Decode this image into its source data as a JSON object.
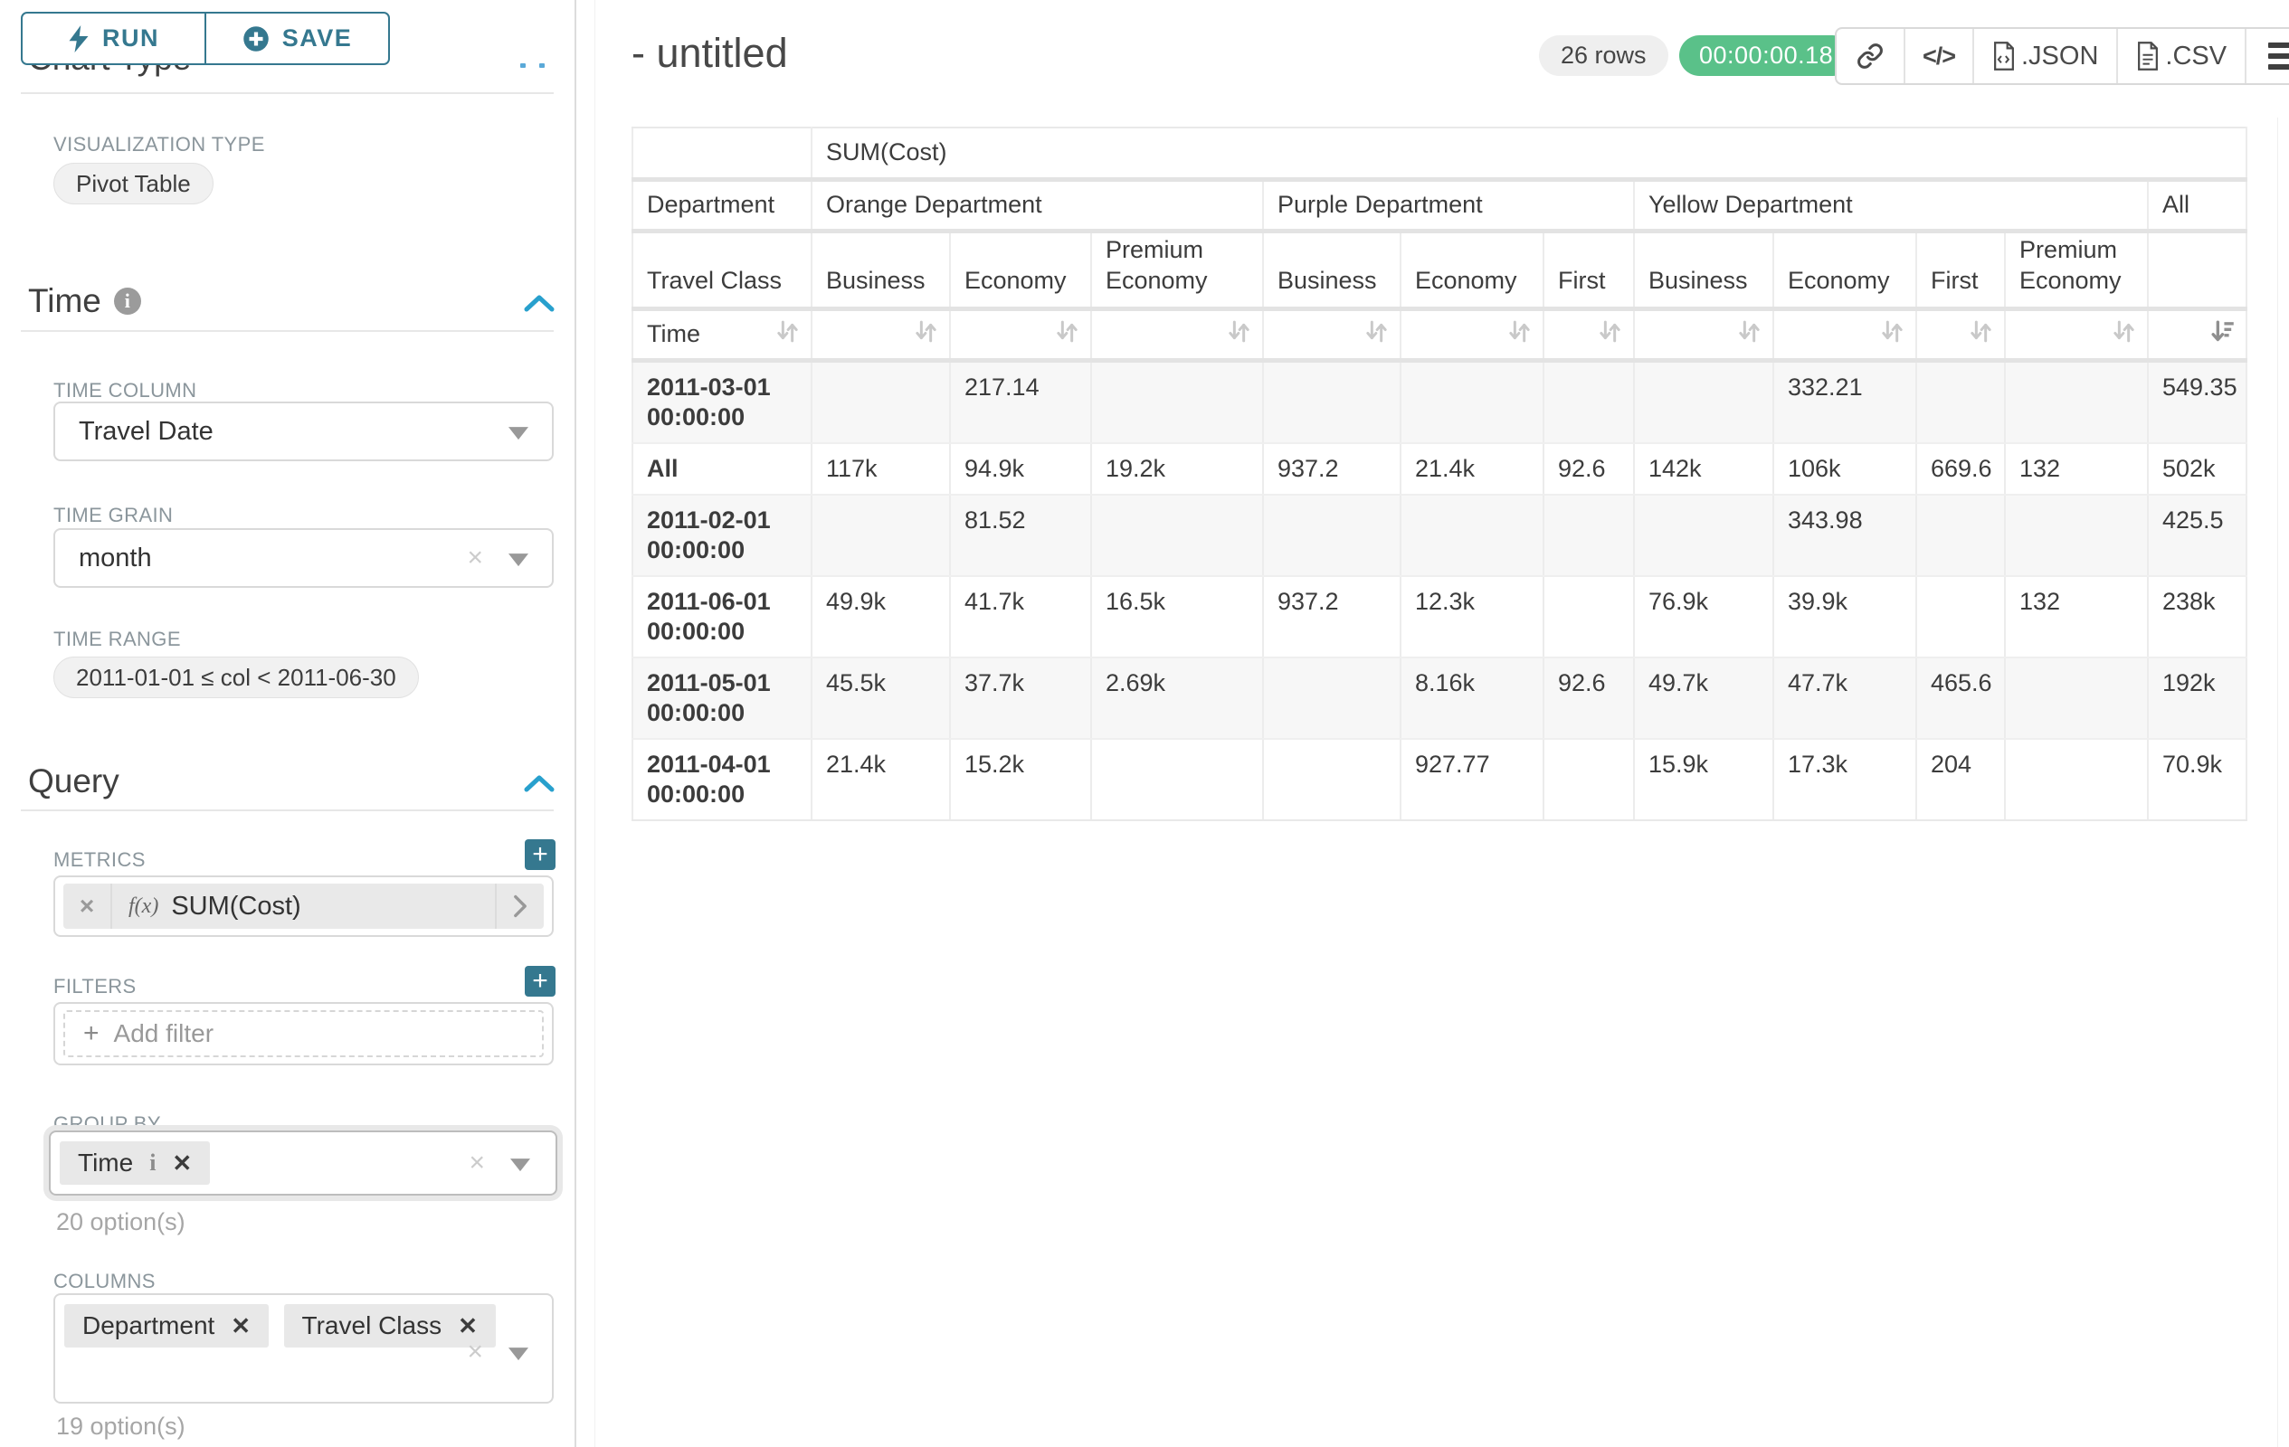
{
  "toolbar": {
    "run_label": "RUN",
    "save_label": "SAVE"
  },
  "sidebar": {
    "section_chart_type": "Chart Type",
    "viz_type_label": "VISUALIZATION TYPE",
    "viz_type_value": "Pivot Table",
    "time_section_label": "Time",
    "time_column_label": "TIME COLUMN",
    "time_column_value": "Travel Date",
    "time_grain_label": "TIME GRAIN",
    "time_grain_value": "month",
    "time_range_label": "TIME RANGE",
    "time_range_value": "2011-01-01 ≤ col < 2011-06-30",
    "query_section_label": "Query",
    "metrics_label": "METRICS",
    "metric_fx": "f(x)",
    "metric_value": "SUM(Cost)",
    "filters_label": "FILTERS",
    "add_filter_label": "Add filter",
    "group_by_label": "GROUP BY",
    "group_by_chips": [
      "Time"
    ],
    "group_by_options_hint": "20 option(s)",
    "columns_label": "COLUMNS",
    "columns_chips": [
      "Department",
      "Travel Class"
    ],
    "columns_options_hint": "19 option(s)"
  },
  "header": {
    "title": "- untitled",
    "row_count": "26 rows",
    "timer": "00:00:00.18",
    "export_json_label": ".JSON",
    "export_csv_label": ".CSV"
  },
  "icons": {
    "run": "lightning-bolt",
    "save": "plus-circle",
    "info": "info-circle",
    "collapse": "chevron-up",
    "select": "caret-down",
    "share": "link-chain",
    "embed": "code-brackets",
    "export": "file-document",
    "more": "hamburger-menu",
    "sort_inactive": "sort-arrows-up-down",
    "sort_active": "sort-amount-desc"
  },
  "colors": {
    "accent_teal": "#35788f",
    "collapse_blue": "#28a0cd",
    "success_green": "#5ac189",
    "label_gray": "#8b969c",
    "grid_gray": "#e3e3e3",
    "stripe_gray": "#f7f7f7"
  },
  "chart_data": {
    "type": "table",
    "title": "SUM(Cost)",
    "row_dimension": "Time",
    "column_dimensions": [
      "Department",
      "Travel Class"
    ],
    "corner": {
      "dim1": "Department",
      "dim2": "Travel Class",
      "row_dim": "Time"
    },
    "column_groups": [
      {
        "label": "Orange Department",
        "children": [
          "Business",
          "Economy",
          "Premium Economy"
        ]
      },
      {
        "label": "Purple Department",
        "children": [
          "Business",
          "Economy",
          "First"
        ]
      },
      {
        "label": "Yellow Department",
        "children": [
          "Business",
          "Economy",
          "First",
          "Premium Economy"
        ]
      },
      {
        "label": "All",
        "children": [
          ""
        ]
      }
    ],
    "sort": {
      "active_column": "All",
      "direction": "desc"
    },
    "rows": [
      {
        "label": "2011-03-01 00:00:00",
        "values": [
          "",
          "217.14",
          "",
          "",
          "",
          "",
          "",
          "332.21",
          "",
          "",
          "549.35"
        ]
      },
      {
        "label": "All",
        "values": [
          "117k",
          "94.9k",
          "19.2k",
          "937.2",
          "21.4k",
          "92.6",
          "142k",
          "106k",
          "669.6",
          "132",
          "502k"
        ]
      },
      {
        "label": "2011-02-01 00:00:00",
        "values": [
          "",
          "81.52",
          "",
          "",
          "",
          "",
          "",
          "343.98",
          "",
          "",
          "425.5"
        ]
      },
      {
        "label": "2011-06-01 00:00:00",
        "values": [
          "49.9k",
          "41.7k",
          "16.5k",
          "937.2",
          "12.3k",
          "",
          "76.9k",
          "39.9k",
          "",
          "132",
          "238k"
        ]
      },
      {
        "label": "2011-05-01 00:00:00",
        "values": [
          "45.5k",
          "37.7k",
          "2.69k",
          "",
          "8.16k",
          "92.6",
          "49.7k",
          "47.7k",
          "465.6",
          "",
          "192k"
        ]
      },
      {
        "label": "2011-04-01 00:00:00",
        "values": [
          "21.4k",
          "15.2k",
          "",
          "",
          "927.77",
          "",
          "15.9k",
          "17.3k",
          "204",
          "",
          "70.9k"
        ]
      }
    ]
  }
}
